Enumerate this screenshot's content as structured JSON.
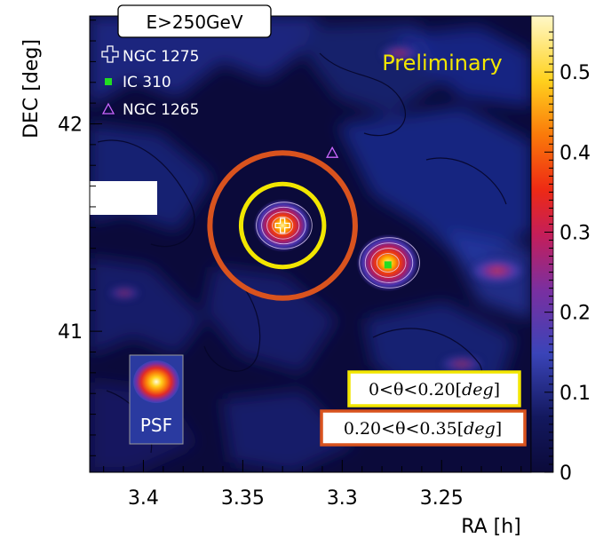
{
  "chart_data": {
    "type": "heatmap",
    "title": "E>250GeV",
    "xlabel": "RA [h]",
    "ylabel": "DEC [deg]",
    "x_ticks": [
      "3.4",
      "3.35",
      "3.3",
      "3.25"
    ],
    "y_ticks": [
      "42",
      "41"
    ],
    "colorbar_ticks": [
      "0.5",
      "0.4",
      "0.3",
      "0.2",
      "0.1",
      "0"
    ],
    "colorbar_range": [
      0,
      0.57
    ],
    "annotation": "Preliminary",
    "legend": [
      {
        "label": "NGC 1275",
        "marker": "open-cross",
        "color": "#ffffff"
      },
      {
        "label": "IC 310",
        "marker": "filled-square",
        "color": "#22dd22"
      },
      {
        "label": "NGC 1265",
        "marker": "open-triangle",
        "color": "#cc66ff"
      }
    ],
    "sources": [
      {
        "name": "NGC 1275",
        "ra": 3.33,
        "dec": 41.51
      },
      {
        "name": "IC 310",
        "ra": 3.277,
        "dec": 41.32
      },
      {
        "name": "NGC 1265",
        "ra": 3.305,
        "dec": 41.86
      }
    ],
    "hotspots": [
      {
        "name": "NGC 1275",
        "ra": 3.33,
        "dec": 41.51,
        "peak": 0.3
      },
      {
        "name": "IC 310",
        "ra": 3.277,
        "dec": 41.33,
        "peak": 0.36
      }
    ],
    "regions": [
      {
        "label_pre": "0<θ<0.20",
        "label_unit": "deg",
        "radius_deg": 0.2,
        "color": "#f2e600"
      },
      {
        "label_pre": "0.20<θ<0.35",
        "label_unit": "deg",
        "radius_deg": 0.35,
        "color": "#d9531e"
      }
    ],
    "psf_label": "PSF"
  }
}
